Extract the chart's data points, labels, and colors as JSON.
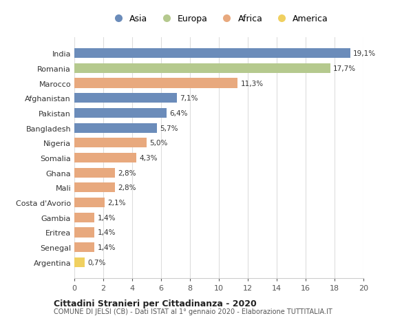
{
  "categories": [
    "Argentina",
    "Senegal",
    "Eritrea",
    "Gambia",
    "Costa d'Avorio",
    "Mali",
    "Ghana",
    "Somalia",
    "Nigeria",
    "Bangladesh",
    "Pakistan",
    "Afghanistan",
    "Marocco",
    "Romania",
    "India"
  ],
  "values": [
    0.7,
    1.4,
    1.4,
    1.4,
    2.1,
    2.8,
    2.8,
    4.3,
    5.0,
    5.7,
    6.4,
    7.1,
    11.3,
    17.7,
    19.1
  ],
  "labels": [
    "0,7%",
    "1,4%",
    "1,4%",
    "1,4%",
    "2,1%",
    "2,8%",
    "2,8%",
    "4,3%",
    "5,0%",
    "5,7%",
    "6,4%",
    "7,1%",
    "11,3%",
    "17,7%",
    "19,1%"
  ],
  "continents": [
    "America",
    "Africa",
    "Africa",
    "Africa",
    "Africa",
    "Africa",
    "Africa",
    "Africa",
    "Africa",
    "Asia",
    "Asia",
    "Asia",
    "Africa",
    "Europa",
    "Asia"
  ],
  "colors": {
    "Asia": "#6b8cba",
    "Europa": "#b5c98e",
    "Africa": "#e8a97e",
    "America": "#f0d060"
  },
  "legend_order": [
    "Asia",
    "Europa",
    "Africa",
    "America"
  ],
  "title": "Cittadini Stranieri per Cittadinanza - 2020",
  "subtitle": "COMUNE DI JELSI (CB) - Dati ISTAT al 1° gennaio 2020 - Elaborazione TUTTITALIA.IT",
  "xlim": [
    0,
    20
  ],
  "xticks": [
    0,
    2,
    4,
    6,
    8,
    10,
    12,
    14,
    16,
    18,
    20
  ],
  "background_color": "#ffffff",
  "grid_color": "#dddddd"
}
